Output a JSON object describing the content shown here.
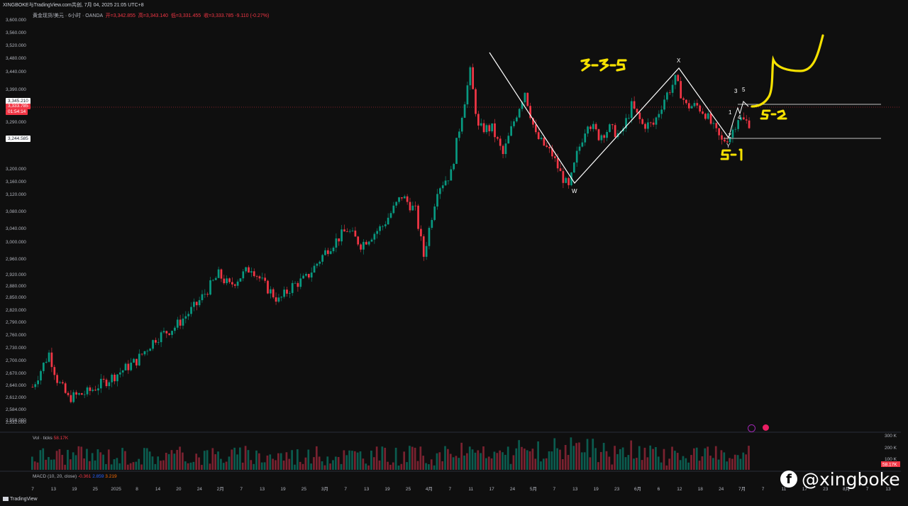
{
  "header": {
    "publish_line": "XINGBOKE与TradingView.com共创, 7月 04, 2025 21:05 UTC+8",
    "symbol": "黄金现货/美元 · 6小时 · OANDA",
    "ohlc_open": "开=3,342.855",
    "ohlc_high": "高=3,343.140",
    "ohlc_low": "低=3,331.455",
    "ohlc_close": "收=3,333.785 -9.110 (-0.27%)"
  },
  "price_tags": {
    "upper": "3,345.210",
    "current": "3,333.785",
    "countdown": "01:54:14",
    "lower": "3,244.585"
  },
  "price_axis": [
    "3,600.000",
    "3,560.000",
    "3,520.000",
    "3,480.000",
    "3,440.000",
    "3,390.000",
    "3,290.000",
    "3,200.000",
    "3,160.000",
    "3,120.000",
    "3,080.000",
    "3,040.000",
    "3,000.000",
    "2,960.000",
    "2,920.000",
    "2,880.000",
    "2,850.000",
    "2,820.000",
    "2,790.000",
    "2,760.000",
    "2,730.000",
    "2,700.000",
    "2,670.000",
    "2,640.000",
    "2,612.000",
    "2,584.000",
    "2,558.000",
    "2,532.000"
  ],
  "time_axis": [
    "7",
    "13",
    "19",
    "25",
    "2025",
    "8",
    "14",
    "20",
    "24",
    "2月",
    "7",
    "13",
    "19",
    "25",
    "3月",
    "7",
    "13",
    "19",
    "25",
    "4月",
    "7",
    "11",
    "17",
    "24",
    "5月",
    "7",
    "13",
    "19",
    "23",
    "6月",
    "6",
    "12",
    "18",
    "24",
    "7月",
    "7",
    "11",
    "17",
    "23",
    "8月",
    "7",
    "13"
  ],
  "volume_legend": {
    "label": "Vol · ticks",
    "value": "58.17K"
  },
  "volume_axis": [
    "300 K",
    "200 K",
    "100 K"
  ],
  "volume_tag": "58.17K",
  "macd_legend": {
    "label": "MACD (10, 20, close)",
    "v1": "-0.361",
    "v2": "2.859",
    "v3": "3.219"
  },
  "wave_labels": [
    "W",
    "X",
    "Y",
    "Z",
    "1",
    "3",
    "4",
    "5"
  ],
  "handwritten": [
    "3-3-5",
    "5-2",
    "5-1"
  ],
  "footer": {
    "brand": "TradingView"
  },
  "watermark": "@xingboke",
  "chart_data": {
    "type": "candlestick",
    "instrument": "黄金现货/美元",
    "timeframe": "6小时",
    "ylim": [
      2530,
      3610
    ],
    "close_path": [
      [
        0,
        2630
      ],
      [
        4,
        2690
      ],
      [
        6,
        2720
      ],
      [
        9,
        2650
      ],
      [
        13,
        2600
      ],
      [
        20,
        2615
      ],
      [
        30,
        2660
      ],
      [
        38,
        2700
      ],
      [
        45,
        2760
      ],
      [
        52,
        2790
      ],
      [
        60,
        2850
      ],
      [
        68,
        2930
      ],
      [
        72,
        2900
      ],
      [
        80,
        2950
      ],
      [
        85,
        2900
      ],
      [
        90,
        2860
      ],
      [
        95,
        2900
      ],
      [
        100,
        2920
      ],
      [
        108,
        3000
      ],
      [
        115,
        3050
      ],
      [
        120,
        3010
      ],
      [
        128,
        3060
      ],
      [
        135,
        3140
      ],
      [
        140,
        3100
      ],
      [
        143,
        2980
      ],
      [
        148,
        3160
      ],
      [
        153,
        3200
      ],
      [
        157,
        3360
      ],
      [
        160,
        3470
      ],
      [
        163,
        3320
      ],
      [
        168,
        3320
      ],
      [
        172,
        3250
      ],
      [
        176,
        3340
      ],
      [
        180,
        3420
      ],
      [
        184,
        3300
      ],
      [
        190,
        3250
      ],
      [
        193,
        3200
      ],
      [
        196,
        3160
      ],
      [
        199,
        3250
      ],
      [
        203,
        3340
      ],
      [
        207,
        3300
      ],
      [
        211,
        3320
      ],
      [
        215,
        3300
      ],
      [
        219,
        3380
      ],
      [
        223,
        3330
      ],
      [
        227,
        3330
      ],
      [
        231,
        3400
      ],
      [
        235,
        3450
      ],
      [
        239,
        3380
      ],
      [
        243,
        3380
      ],
      [
        246,
        3360
      ],
      [
        249,
        3320
      ],
      [
        252,
        3285
      ],
      [
        255,
        3300
      ],
      [
        258,
        3350
      ],
      [
        260,
        3340
      ],
      [
        262,
        3335
      ]
    ],
    "wave_points": {
      "start": 3495,
      "W": 3120,
      "X": 3450,
      "Y": 3255
    },
    "levels": [
      3345.21,
      3244.585
    ]
  }
}
